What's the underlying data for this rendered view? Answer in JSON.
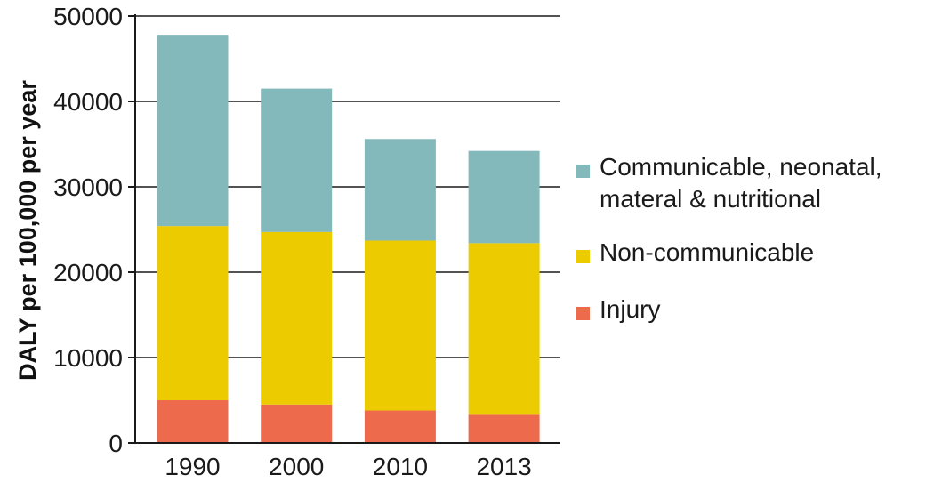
{
  "chart_data": {
    "type": "bar",
    "stacked": true,
    "title": "",
    "xlabel": "",
    "ylabel": "DALY per 100,000 per year",
    "ylim": [
      0,
      50000
    ],
    "yticks": [
      0,
      10000,
      20000,
      30000,
      40000,
      50000
    ],
    "grid": true,
    "legend_position": "right",
    "categories": [
      "1990",
      "2000",
      "2010",
      "2013"
    ],
    "series": [
      {
        "name": "Injury",
        "color": "#ee6a4c",
        "values": [
          5000,
          4500,
          3800,
          3400
        ]
      },
      {
        "name": "Non-communicable",
        "color": "#eccb00",
        "values": [
          20400,
          20200,
          19900,
          20000
        ]
      },
      {
        "name": "Communicable, neonatal, materal & nutritional",
        "color": "#84b9bb",
        "values": [
          22400,
          16800,
          11900,
          10800
        ]
      }
    ],
    "legend": [
      {
        "lines": [
          "Communicable, neonatal,",
          "materal & nutritional"
        ],
        "color": "#84b9bb"
      },
      {
        "lines": [
          "Non-communicable"
        ],
        "color": "#eccb00"
      },
      {
        "lines": [
          "Injury"
        ],
        "color": "#ee6a4c"
      }
    ]
  }
}
